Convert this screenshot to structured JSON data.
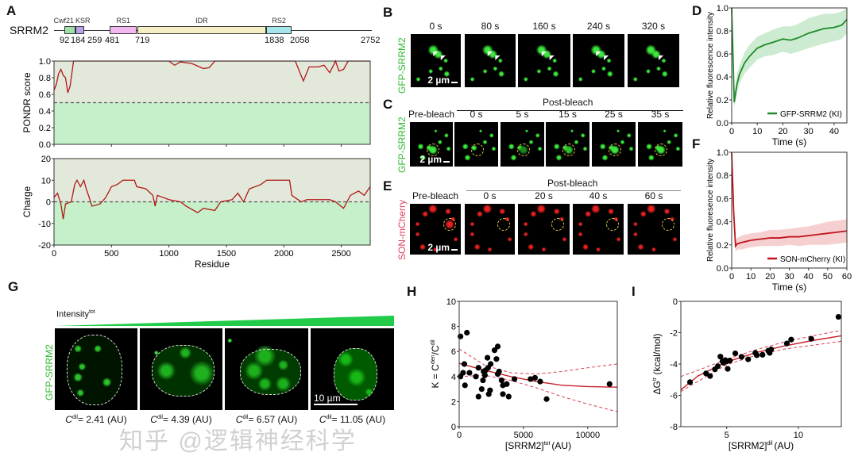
{
  "panel_labels": {
    "A": "A",
    "B": "B",
    "C": "C",
    "D": "D",
    "E": "E",
    "F": "F",
    "G": "G",
    "H": "H",
    "I": "I"
  },
  "panel_a": {
    "protein": "SRRM2",
    "length": 2752,
    "domains": [
      {
        "name": "Cwf21",
        "start": 92,
        "end": 184,
        "color": "#9fe0a8"
      },
      {
        "name": "KSR",
        "start": 184,
        "end": 259,
        "color": "#b9a2ee"
      },
      {
        "name": "RS1",
        "start": 481,
        "end": 719,
        "color": "#f4b8f0"
      },
      {
        "name": "IDR",
        "start": 719,
        "end": 1838,
        "color": "#f6efc4"
      },
      {
        "name": "RS2",
        "start": 1838,
        "end": 2058,
        "color": "#a8e6ee"
      }
    ],
    "position_labels": [
      "92",
      "184",
      "259",
      "481",
      "719",
      "1838",
      "2058",
      "2752"
    ]
  },
  "panel_b": {
    "channel": "GFP-SRRM2",
    "times": [
      "0 s",
      "80 s",
      "160 s",
      "240 s",
      "320 s"
    ],
    "scale_bar": "2 µm"
  },
  "panel_c": {
    "channel": "GFP-SRRM2",
    "pre": "Pre-bleach",
    "post": "Post-bleach",
    "times": [
      "0 s",
      "5 s",
      "15 s",
      "25 s",
      "35 s"
    ],
    "scale_bar": "2 µm"
  },
  "panel_e": {
    "channel": "SON-mCherry",
    "pre": "Pre-bleach",
    "post": "Post-bleach",
    "times": [
      "0 s",
      "20 s",
      "40 s",
      "60 s"
    ],
    "scale_bar": "2 µm"
  },
  "panel_g": {
    "channel": "GFP-SRRM2",
    "gradient_label": "Intensity",
    "gradient_sup": "tot",
    "scale_bar": "10 µm",
    "captions": [
      {
        "c": "C",
        "sup": "dil",
        "text": "= 2.41 (AU)"
      },
      {
        "c": "C",
        "sup": "dil",
        "text": "= 4.39 (AU)"
      },
      {
        "c": "C",
        "sup": "dil",
        "text": "= 6.57 (AU)"
      },
      {
        "c": "C",
        "sup": "dil",
        "text": "= 11.05 (AU)"
      }
    ]
  },
  "colors": {
    "green": "#1f8a2a",
    "red": "#c0141c",
    "gfp": "#2fe02f",
    "mcherry": "#e01a1a",
    "fit": "#c8202a"
  },
  "watermark": "知乎 @逻辑神经科学",
  "chart_data": [
    {
      "id": "A_pondr",
      "type": "line",
      "xlabel": "",
      "ylabel": "PONDR score",
      "xlim": [
        0,
        2752
      ],
      "ylim": [
        0,
        1
      ],
      "xticks": [
        0,
        500,
        1000,
        1500,
        2000,
        2500
      ],
      "yticks": [
        0,
        0.2,
        0.4,
        0.6,
        0.8,
        1.0
      ],
      "ytick_labels": [
        "0.0",
        "0.2",
        "0.4",
        "0.6",
        "0.8",
        "1.0"
      ],
      "threshold": 0.5,
      "x": [
        0,
        20,
        40,
        60,
        80,
        100,
        120,
        140,
        170,
        1000,
        1050,
        1100,
        1200,
        1300,
        1350,
        1400,
        2100,
        2170,
        2220,
        2300,
        2350,
        2400,
        2450,
        2480,
        2520,
        2560,
        2752
      ],
      "y": [
        0.65,
        0.72,
        0.85,
        0.9,
        0.83,
        0.8,
        0.62,
        0.7,
        1.0,
        1.0,
        0.95,
        0.99,
        0.97,
        0.91,
        0.92,
        1.0,
        1.0,
        0.76,
        0.93,
        0.93,
        0.95,
        0.86,
        1.0,
        0.88,
        0.9,
        1.0,
        1.0
      ]
    },
    {
      "id": "A_charge",
      "type": "line",
      "xlabel": "Residue",
      "ylabel": "Charge",
      "xlim": [
        0,
        2752
      ],
      "ylim": [
        -20,
        20
      ],
      "xticks": [
        0,
        500,
        1000,
        1500,
        2000,
        2500
      ],
      "yticks": [
        -20,
        -10,
        0,
        10,
        20
      ],
      "threshold": 0,
      "x": [
        0,
        30,
        60,
        80,
        100,
        150,
        180,
        200,
        230,
        260,
        280,
        300,
        330,
        400,
        450,
        500,
        550,
        600,
        700,
        720,
        800,
        860,
        880,
        900,
        1000,
        1100,
        1150,
        1250,
        1300,
        1400,
        1450,
        1550,
        1600,
        1650,
        1700,
        1800,
        1850,
        1900,
        2050,
        2070,
        2150,
        2200,
        2400,
        2450,
        2520,
        2580,
        2650,
        2700,
        2752
      ],
      "y": [
        2,
        4,
        -1,
        -8,
        -1,
        0,
        8,
        10,
        7,
        10,
        6,
        3,
        -2,
        -1,
        2,
        7,
        8,
        10,
        10,
        7,
        6,
        3,
        -2,
        3,
        1,
        0,
        -2,
        -5,
        -3,
        -4,
        0,
        1,
        4,
        0,
        6,
        8,
        10,
        10,
        10,
        3,
        0,
        1,
        1,
        0,
        -3,
        3,
        5,
        3,
        7
      ]
    },
    {
      "id": "D",
      "type": "area",
      "xlabel": "Time (s)",
      "ylabel": "Relative fluorescence intensity",
      "xlim": [
        0,
        45
      ],
      "ylim": [
        0,
        1
      ],
      "xticks": [
        0,
        10,
        20,
        30,
        40
      ],
      "yticks": [
        0,
        0.2,
        0.4,
        0.6,
        0.8,
        1.0
      ],
      "ytick_labels": [
        "0.0",
        "0.2",
        "0.4",
        "0.6",
        "0.8",
        "1.0"
      ],
      "series": [
        {
          "name": "GFP-SRRM2 (KI)",
          "color": "#1f8a2a",
          "band_color": "#cdebd0",
          "x": [
            0,
            1,
            2,
            3,
            5,
            7,
            10,
            13,
            16,
            20,
            23,
            26,
            30,
            33,
            36,
            40,
            43,
            45
          ],
          "y": [
            1.0,
            0.18,
            0.33,
            0.42,
            0.52,
            0.58,
            0.65,
            0.68,
            0.7,
            0.73,
            0.72,
            0.74,
            0.78,
            0.8,
            0.82,
            0.83,
            0.85,
            0.9
          ],
          "band": [
            0,
            0.05,
            0.08,
            0.08,
            0.09,
            0.1,
            0.1,
            0.1,
            0.11,
            0.11,
            0.12,
            0.12,
            0.13,
            0.13,
            0.13,
            0.12,
            0.12,
            0.12
          ]
        }
      ],
      "legend": "bottom-right"
    },
    {
      "id": "F",
      "type": "area",
      "xlabel": "Time (s)",
      "ylabel": "Relative fluoresence intensity",
      "xlim": [
        0,
        60
      ],
      "ylim": [
        0,
        1
      ],
      "xticks": [
        0,
        10,
        20,
        30,
        40,
        50,
        60
      ],
      "yticks": [
        0,
        0.2,
        0.4,
        0.6,
        0.8,
        1.0
      ],
      "ytick_labels": [
        "0.0",
        "0.2",
        "0.4",
        "0.6",
        "0.8",
        "1.0"
      ],
      "series": [
        {
          "name": "SON-mCherry (KI)",
          "color": "#c0141c",
          "band_color": "#f6d0d0",
          "x": [
            0,
            1,
            2,
            3,
            5,
            10,
            15,
            20,
            25,
            30,
            35,
            40,
            45,
            50,
            55,
            60
          ],
          "y": [
            1.0,
            0.5,
            0.19,
            0.21,
            0.22,
            0.24,
            0.25,
            0.26,
            0.26,
            0.27,
            0.27,
            0.28,
            0.29,
            0.3,
            0.31,
            0.32
          ],
          "band": [
            0,
            0.05,
            0.05,
            0.05,
            0.06,
            0.06,
            0.06,
            0.07,
            0.07,
            0.07,
            0.08,
            0.08,
            0.09,
            0.1,
            0.1,
            0.1
          ]
        }
      ],
      "legend": "bottom-right"
    },
    {
      "id": "H",
      "type": "scatter",
      "xlabel": "[SRRM2]",
      "xlabel_sup": "tot",
      "xlabel_unit": "(AU)",
      "ylabel": "K = C",
      "ylabel_sup1": "den",
      "ylabel_mid": "/C",
      "ylabel_sup2": "dil",
      "xlim": [
        0,
        12300
      ],
      "ylim": [
        0,
        10
      ],
      "xticks": [
        0,
        5000,
        10000
      ],
      "yticks": [
        0,
        2,
        4,
        6,
        8,
        10
      ],
      "points": [
        [
          100,
          7.2
        ],
        [
          600,
          7.5
        ],
        [
          100,
          4.0
        ],
        [
          300,
          4.3
        ],
        [
          400,
          5.0
        ],
        [
          450,
          3.3
        ],
        [
          800,
          4.3
        ],
        [
          1300,
          4.0
        ],
        [
          1500,
          2.4
        ],
        [
          1500,
          4.7
        ],
        [
          1750,
          3.0
        ],
        [
          1850,
          3.7
        ],
        [
          1900,
          4.4
        ],
        [
          2000,
          4.1
        ],
        [
          2050,
          4.5
        ],
        [
          2200,
          5.5
        ],
        [
          2250,
          4.7
        ],
        [
          2300,
          2.6
        ],
        [
          2400,
          2.9
        ],
        [
          2450,
          5.0
        ],
        [
          2750,
          6.1
        ],
        [
          2900,
          5.4
        ],
        [
          3000,
          6.4
        ],
        [
          3000,
          4.2
        ],
        [
          3100,
          4.4
        ],
        [
          3300,
          3.7
        ],
        [
          3400,
          3.3
        ],
        [
          3400,
          2.6
        ],
        [
          3700,
          3.4
        ],
        [
          3850,
          2.4
        ],
        [
          4300,
          3.8
        ],
        [
          5550,
          3.8
        ],
        [
          5900,
          3.9
        ],
        [
          6300,
          3.6
        ],
        [
          6800,
          2.2
        ],
        [
          11700,
          3.4
        ]
      ],
      "fit": [
        [
          0,
          5.05
        ],
        [
          2000,
          4.5
        ],
        [
          4000,
          4.0
        ],
        [
          6000,
          3.6
        ],
        [
          8000,
          3.3
        ],
        [
          10000,
          3.2
        ],
        [
          12300,
          3.15
        ]
      ],
      "ci_upper": [
        [
          0,
          6.2
        ],
        [
          2000,
          4.9
        ],
        [
          4000,
          4.3
        ],
        [
          6000,
          4.2
        ],
        [
          8000,
          4.4
        ],
        [
          10000,
          4.7
        ],
        [
          12300,
          5.0
        ]
      ],
      "ci_lower": [
        [
          0,
          4.0
        ],
        [
          2000,
          4.1
        ],
        [
          4000,
          3.7
        ],
        [
          6000,
          3.1
        ],
        [
          8000,
          2.4
        ],
        [
          10000,
          1.8
        ],
        [
          12300,
          1.2
        ]
      ]
    },
    {
      "id": "I",
      "type": "scatter",
      "xlabel": "[SRRM2]",
      "xlabel_sup": "dil",
      "xlabel_unit": "(AU)",
      "ylabel": "ΔG",
      "ylabel_sup1": "tr",
      "ylabel_mid": " (kcal/mol)",
      "xlim": [
        1.8,
        13
      ],
      "ylim": [
        -8,
        0
      ],
      "xticks": [
        5,
        10
      ],
      "yticks": [
        -8,
        -6,
        -4,
        -2,
        0
      ],
      "points": [
        [
          2.44,
          -5.16
        ],
        [
          3.56,
          -4.6
        ],
        [
          3.84,
          -4.77
        ],
        [
          4.18,
          -4.34
        ],
        [
          4.38,
          -4.14
        ],
        [
          4.56,
          -3.53
        ],
        [
          4.71,
          -3.83
        ],
        [
          4.78,
          -3.92
        ],
        [
          4.9,
          -3.75
        ],
        [
          5.0,
          -3.83
        ],
        [
          5.07,
          -4.31
        ],
        [
          5.22,
          -3.78
        ],
        [
          5.6,
          -3.32
        ],
        [
          6.04,
          -3.54
        ],
        [
          6.5,
          -3.7
        ],
        [
          7.0,
          -3.29
        ],
        [
          7.1,
          -3.44
        ],
        [
          7.5,
          -3.41
        ],
        [
          7.9,
          -3.15
        ],
        [
          8.0,
          -3.29
        ],
        [
          8.1,
          -3.07
        ],
        [
          9.2,
          -2.69
        ],
        [
          9.5,
          -2.44
        ],
        [
          10.9,
          -2.39
        ],
        [
          12.8,
          -0.99
        ]
      ],
      "fit": [
        [
          1.8,
          -5.65
        ],
        [
          3,
          -4.76
        ],
        [
          5,
          -3.87
        ],
        [
          7,
          -3.28
        ],
        [
          9,
          -2.85
        ],
        [
          11,
          -2.5
        ],
        [
          13,
          -2.2
        ]
      ],
      "ci_upper": [
        [
          1.8,
          -4.8
        ],
        [
          3,
          -4.4
        ],
        [
          5,
          -3.7
        ],
        [
          7,
          -3.1
        ],
        [
          9,
          -2.6
        ],
        [
          11,
          -2.2
        ],
        [
          13,
          -1.85
        ]
      ],
      "ci_lower": [
        [
          1.8,
          -5.75
        ],
        [
          3,
          -5.1
        ],
        [
          5,
          -4.05
        ],
        [
          7,
          -3.45
        ],
        [
          9,
          -3.05
        ],
        [
          11,
          -2.8
        ],
        [
          13,
          -2.55
        ]
      ]
    }
  ]
}
